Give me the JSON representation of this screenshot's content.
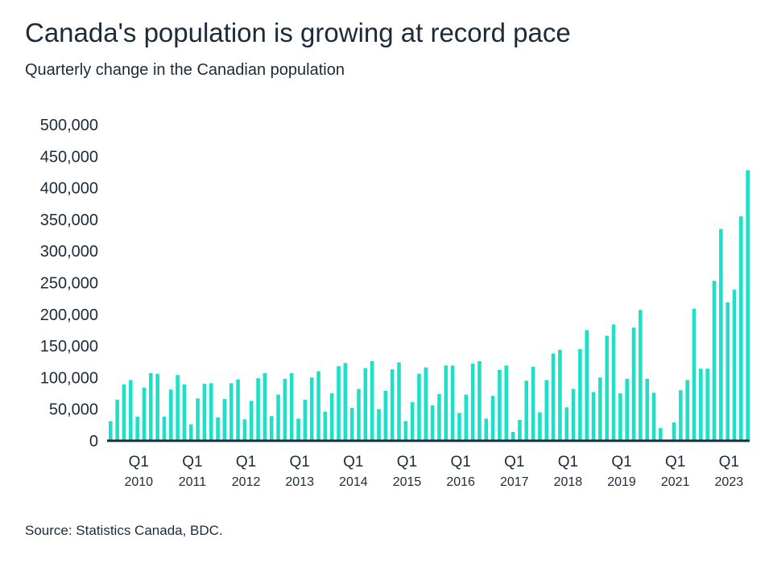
{
  "chart_data": {
    "type": "bar",
    "title": "Canada's population is growing at record pace",
    "subtitle": "Quarterly change in the Canadian population",
    "source": "Source: Statistics Canada, BDC.",
    "xlabel": "",
    "ylabel": "",
    "ylim": [
      0,
      500000
    ],
    "yticks": [
      0,
      50000,
      100000,
      150000,
      200000,
      250000,
      300000,
      350000,
      400000,
      450000,
      500000
    ],
    "ytick_labels": [
      "0",
      "50,000",
      "100,000",
      "150,000",
      "200,000",
      "250,000",
      "300,000",
      "350,000",
      "400,000",
      "450,000",
      "500,000"
    ],
    "grid": false,
    "bar_color": "#1de0c8",
    "axis_color": "#1c2b3a",
    "x_ticks": [
      {
        "bar_index": 4,
        "quarter": "Q1",
        "year": "2010"
      },
      {
        "bar_index": 12,
        "quarter": "Q1",
        "year": "2011"
      },
      {
        "bar_index": 20,
        "quarter": "Q1",
        "year": "2012"
      },
      {
        "bar_index": 28,
        "quarter": "Q1",
        "year": "2013"
      },
      {
        "bar_index": 36,
        "quarter": "Q1",
        "year": "2014"
      },
      {
        "bar_index": 44,
        "quarter": "Q1",
        "year": "2015"
      },
      {
        "bar_index": 52,
        "quarter": "Q1",
        "year": "2016"
      },
      {
        "bar_index": 60,
        "quarter": "Q1",
        "year": "2017"
      },
      {
        "bar_index": 68,
        "quarter": "Q1",
        "year": "2018"
      },
      {
        "bar_index": 76,
        "quarter": "Q1",
        "year": "2019"
      },
      {
        "bar_index": 84,
        "quarter": "Q1",
        "year": "2021"
      },
      {
        "bar_index": 92,
        "quarter": "Q1",
        "year": "2023"
      }
    ],
    "values": [
      31000,
      65000,
      89000,
      96000,
      38000,
      84000,
      107000,
      106000,
      38000,
      81000,
      104000,
      89000,
      26000,
      67000,
      90000,
      91000,
      37000,
      66000,
      91000,
      97000,
      34000,
      63000,
      99000,
      107000,
      39000,
      73000,
      98000,
      107000,
      35000,
      65000,
      100000,
      110000,
      46000,
      75000,
      118000,
      123000,
      52000,
      82000,
      115000,
      126000,
      50000,
      79000,
      113000,
      124000,
      31000,
      61000,
      106000,
      116000,
      56000,
      74000,
      119000,
      119000,
      44000,
      73000,
      122000,
      126000,
      35000,
      71000,
      112000,
      119000,
      14000,
      33000,
      95000,
      117000,
      45000,
      96000,
      138000,
      144000,
      53000,
      82000,
      145000,
      175000,
      77000,
      100000,
      166000,
      184000,
      75000,
      98000,
      179000,
      207000,
      98000,
      76000,
      20000,
      0,
      29000,
      80000,
      96000,
      209000,
      114000,
      114000,
      253000,
      335000,
      219000,
      239000,
      355000,
      428000
    ]
  }
}
